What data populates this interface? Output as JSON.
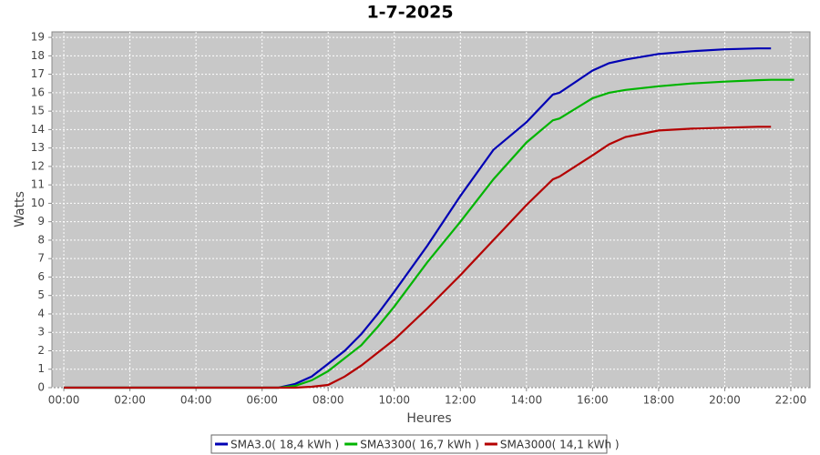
{
  "chart_data": {
    "type": "line",
    "title": "1-7-2025",
    "x_label": "Heures",
    "y_label": "Watts",
    "x": [
      0,
      6.5,
      7,
      7.5,
      8,
      8.5,
      9,
      9.5,
      10,
      11,
      12,
      13,
      14,
      14.8,
      15,
      16,
      16.5,
      17,
      18,
      19,
      20,
      21,
      21.4,
      22.1
    ],
    "series": [
      {
        "name": "SMA3.0( 18,4 kWh )",
        "color": "#0000b4",
        "values": [
          0,
          0,
          0.2,
          0.6,
          1.3,
          2.0,
          2.9,
          4.0,
          5.2,
          7.7,
          10.4,
          12.9,
          14.4,
          15.9,
          16.0,
          17.2,
          17.6,
          17.8,
          18.1,
          18.25,
          18.35,
          18.4,
          18.4,
          null
        ]
      },
      {
        "name": "SMA3300( 16,7 kWh )",
        "color": "#00b400",
        "values": [
          0,
          0,
          0.1,
          0.4,
          0.9,
          1.6,
          2.3,
          3.3,
          4.4,
          6.8,
          9.0,
          11.3,
          13.3,
          14.5,
          14.6,
          15.7,
          16.0,
          16.15,
          16.35,
          16.5,
          16.6,
          16.68,
          16.7,
          16.7
        ]
      },
      {
        "name": "SMA3000( 14,1 kWh )",
        "color": "#b40000",
        "values": [
          0,
          0,
          0,
          0.05,
          0.15,
          0.6,
          1.2,
          1.9,
          2.6,
          4.3,
          6.1,
          8.0,
          9.9,
          11.3,
          11.45,
          12.6,
          13.2,
          13.6,
          13.95,
          14.05,
          14.1,
          14.15,
          14.15,
          null
        ]
      }
    ],
    "xlim": [
      -0.36,
      22.58
    ],
    "xticks": [
      {
        "value": 0,
        "label": "00:00"
      },
      {
        "value": 2,
        "label": "02:00"
      },
      {
        "value": 4,
        "label": "04:00"
      },
      {
        "value": 6,
        "label": "06:00"
      },
      {
        "value": 8,
        "label": "08:00"
      },
      {
        "value": 10,
        "label": "10:00"
      },
      {
        "value": 12,
        "label": "12:00"
      },
      {
        "value": 14,
        "label": "14:00"
      },
      {
        "value": 16,
        "label": "16:00"
      },
      {
        "value": 18,
        "label": "18:00"
      },
      {
        "value": 20,
        "label": "20:00"
      },
      {
        "value": 22,
        "label": "22:00"
      }
    ],
    "ylim": [
      0,
      19.3
    ],
    "yticks": [
      0,
      1,
      2,
      3,
      4,
      5,
      6,
      7,
      8,
      9,
      10,
      11,
      12,
      13,
      14,
      15,
      16,
      17,
      18,
      19
    ],
    "grid": true,
    "legend": "bottom"
  }
}
